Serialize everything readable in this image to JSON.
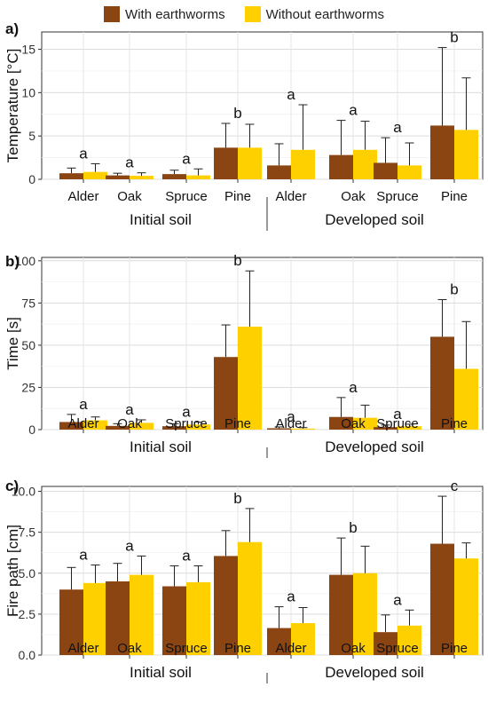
{
  "legend": {
    "with_label": "With earthworms",
    "without_label": "Without earthworms",
    "with_color": "#8B4513",
    "without_color": "#FFD000"
  },
  "chart_data": [
    {
      "type": "bar",
      "panel_label": "a)",
      "ylabel": "Temperature [°C]",
      "ylim": [
        0,
        17
      ],
      "yticks": [
        0,
        5,
        10,
        15
      ],
      "grid": true,
      "categories": [
        "Alder",
        "Oak",
        "Spruce",
        "Pine",
        "Alder",
        "Oak",
        "Spruce",
        "Pine"
      ],
      "groups": [
        "Initial soil",
        "Developed soil"
      ],
      "series": [
        {
          "name": "With earthworms",
          "values": [
            0.7,
            0.45,
            0.6,
            3.65,
            1.6,
            2.8,
            1.9,
            6.2
          ],
          "errors": [
            0.6,
            0.25,
            0.45,
            2.8,
            2.5,
            4.0,
            2.9,
            9.0
          ]
        },
        {
          "name": "Without earthworms",
          "values": [
            0.85,
            0.4,
            0.45,
            3.65,
            3.4,
            3.4,
            1.6,
            5.7
          ],
          "errors": [
            0.95,
            0.35,
            0.75,
            2.7,
            5.2,
            3.3,
            2.6,
            6.0
          ]
        }
      ],
      "letters": [
        "a",
        "a",
        "a",
        "b",
        "a",
        "a",
        "a",
        "b"
      ]
    },
    {
      "type": "bar",
      "panel_label": "b)",
      "ylabel": "Time [s]",
      "ylim": [
        0,
        102
      ],
      "yticks": [
        0,
        25,
        50,
        75,
        100
      ],
      "grid": true,
      "categories": [
        "Alder",
        "Oak",
        "Spruce",
        "Pine",
        "Alder",
        "Oak",
        "Spruce",
        "Pine"
      ],
      "groups": [
        "Initial soil",
        "Developed soil"
      ],
      "series": [
        {
          "name": "With earthworms",
          "values": [
            4.5,
            2.2,
            2.0,
            43.0,
            0.8,
            7.5,
            1.5,
            55.0
          ],
          "errors": [
            4.5,
            1.3,
            1.5,
            19.0,
            0.8,
            11.5,
            1.2,
            22.0
          ]
        },
        {
          "name": "Without earthworms",
          "values": [
            5.5,
            4.0,
            3.0,
            61.0,
            0.6,
            7.0,
            2.0,
            36.0
          ],
          "errors": [
            2.0,
            1.8,
            1.5,
            33.0,
            0.6,
            7.5,
            1.2,
            28.0
          ]
        }
      ],
      "letters": [
        "a",
        "a",
        "a",
        "b",
        "a",
        "a",
        "a",
        "b"
      ]
    },
    {
      "type": "bar",
      "panel_label": "c)",
      "ylabel": "Fire path [cm]",
      "ylim": [
        0,
        10.3
      ],
      "yticks": [
        0.0,
        2.5,
        5.0,
        7.5,
        10.0
      ],
      "ytick_labels": [
        "0.0",
        "2.5",
        "5.0",
        "7.5",
        "10.0"
      ],
      "grid": true,
      "categories": [
        "Alder",
        "Oak",
        "Spruce",
        "Pine",
        "Alder",
        "Oak",
        "Spruce",
        "Pine"
      ],
      "groups": [
        "Initial soil",
        "Developed soil"
      ],
      "series": [
        {
          "name": "With earthworms",
          "values": [
            4.0,
            4.5,
            4.2,
            6.05,
            1.65,
            4.9,
            1.4,
            6.8
          ],
          "errors": [
            1.35,
            1.1,
            1.25,
            1.55,
            1.3,
            2.25,
            1.05,
            2.9
          ]
        },
        {
          "name": "Without earthworms",
          "values": [
            4.4,
            4.9,
            4.45,
            6.9,
            1.95,
            5.0,
            1.8,
            5.9
          ],
          "errors": [
            1.1,
            1.15,
            1.0,
            2.05,
            0.95,
            1.65,
            0.95,
            0.95
          ]
        }
      ],
      "letters": [
        "a",
        "a",
        "a",
        "b",
        "a",
        "b",
        "a",
        "c"
      ]
    }
  ]
}
